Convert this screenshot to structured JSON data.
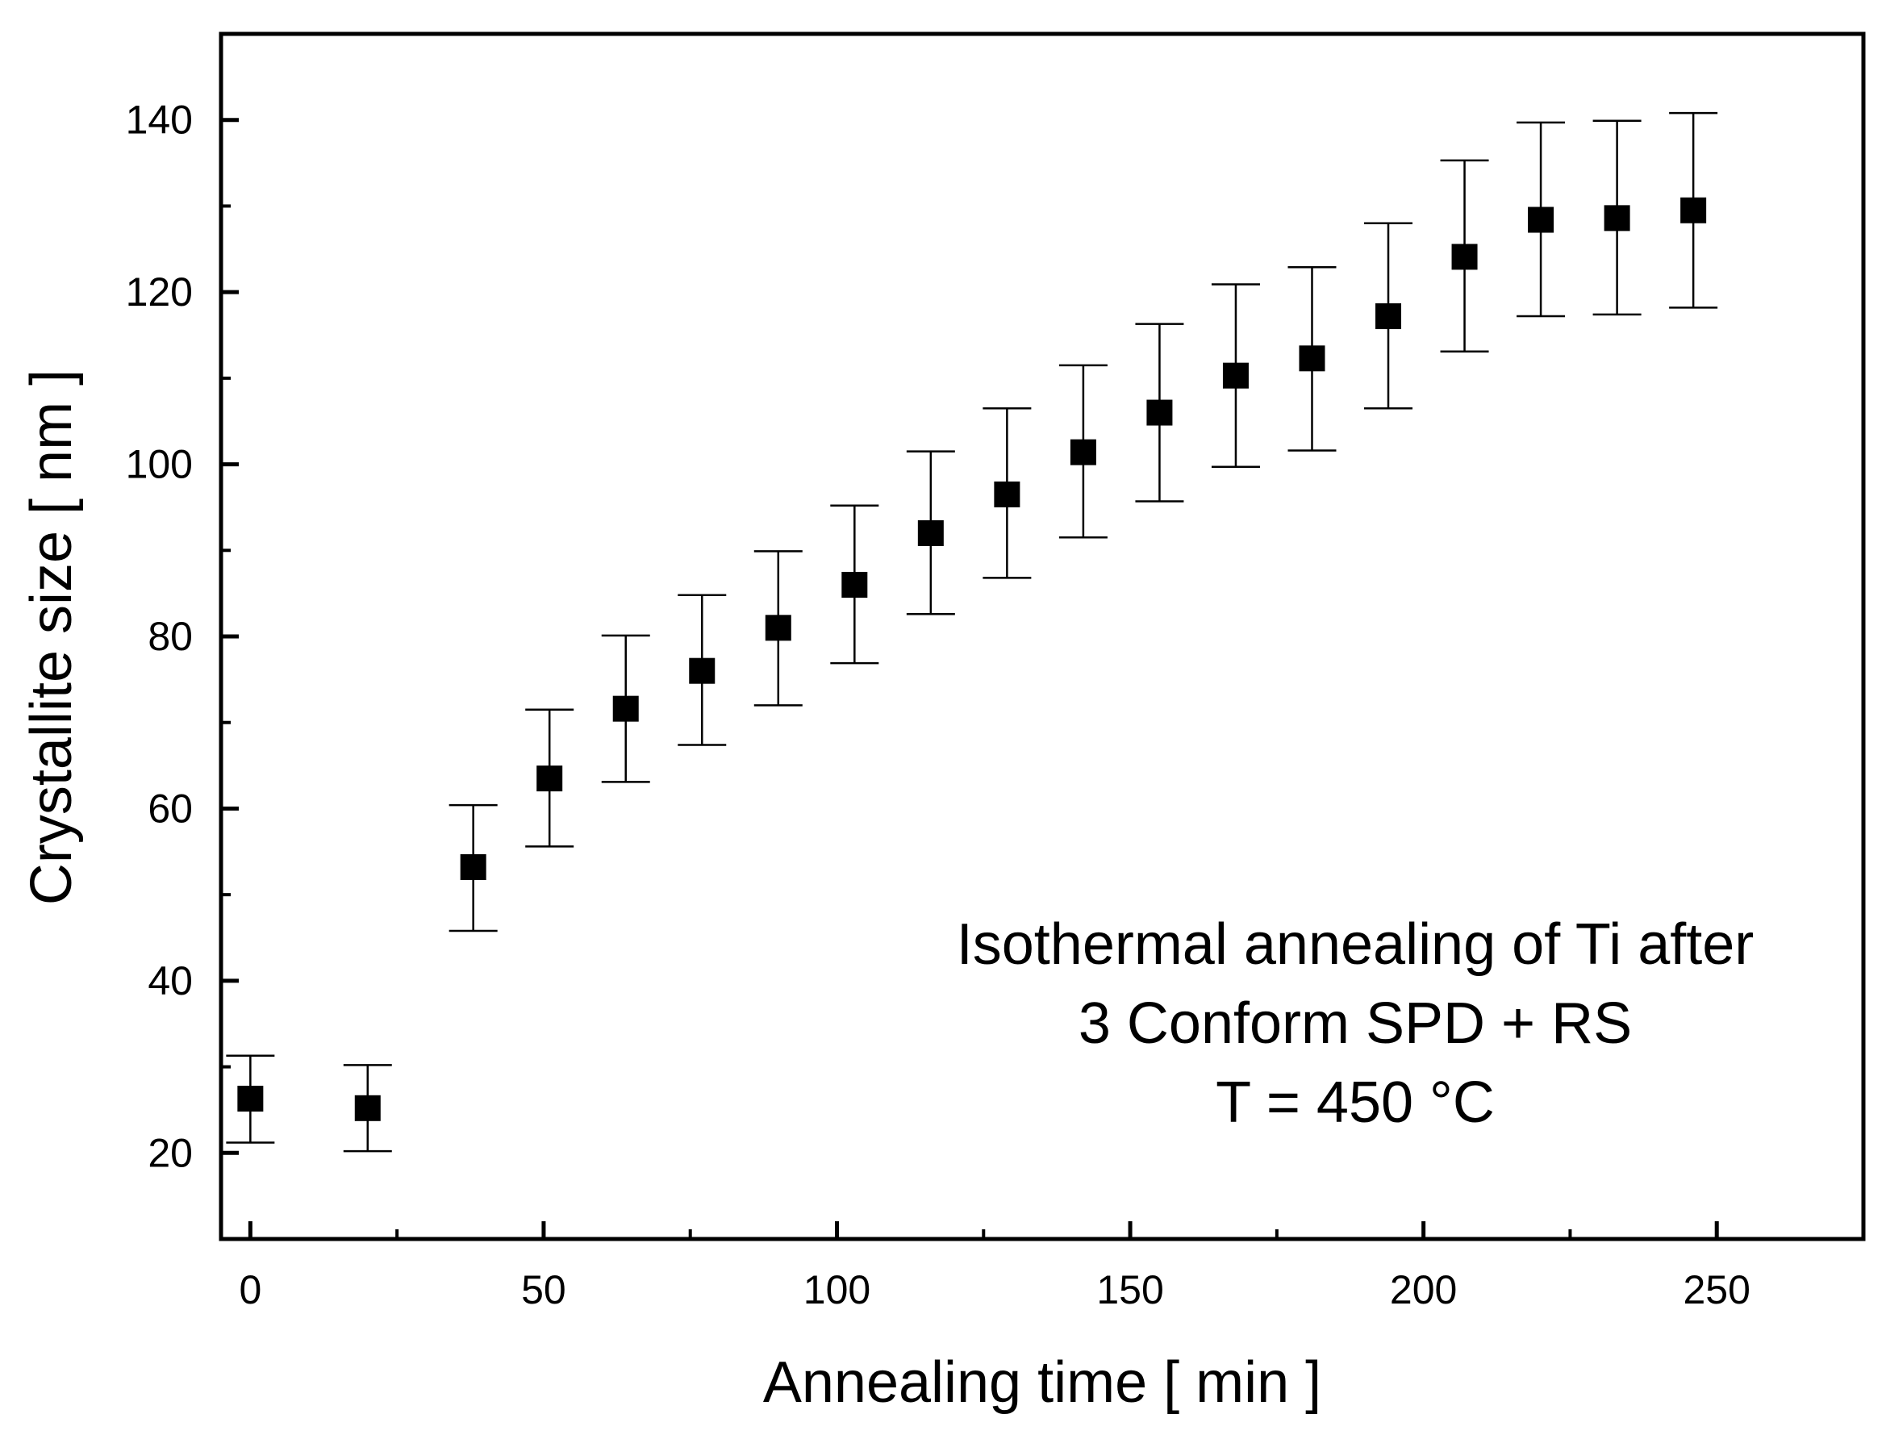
{
  "chart_data": {
    "type": "scatter",
    "title": "",
    "xlabel": "Annealing time [ min ]",
    "ylabel": "Crystallite size [ nm ]",
    "xlim": [
      -5,
      275
    ],
    "ylim": [
      10,
      150
    ],
    "x_ticks": [
      0,
      50,
      100,
      150,
      200,
      250
    ],
    "x_tick_labels": [
      "0",
      "50",
      "100",
      "150",
      "200",
      "250"
    ],
    "x_minor_ticks": [
      25,
      75,
      125,
      175,
      225
    ],
    "y_ticks": [
      20,
      40,
      60,
      80,
      100,
      120,
      140
    ],
    "y_tick_labels": [
      "20",
      "40",
      "60",
      "80",
      "100",
      "120",
      "140"
    ],
    "y_minor_ticks": [
      30,
      50,
      70,
      90,
      110,
      130
    ],
    "grid": false,
    "marker": "square",
    "color": "#000000",
    "series": [
      {
        "name": "Isothermal annealing of Ti after 3 Conform SPD + RS, T = 450 °C",
        "x": [
          0,
          20,
          38,
          51,
          64,
          77,
          90,
          103,
          116,
          129,
          142,
          155,
          168,
          181,
          194,
          207,
          220,
          233,
          246
        ],
        "y": [
          26.3,
          25.2,
          53.2,
          63.5,
          71.6,
          76.0,
          81.0,
          86.0,
          92.0,
          96.5,
          101.4,
          106.0,
          110.3,
          112.3,
          117.2,
          124.1,
          128.4,
          128.6,
          129.5
        ],
        "y_err_low": [
          21.2,
          20.2,
          45.8,
          55.6,
          63.1,
          67.4,
          72.0,
          76.9,
          82.6,
          86.8,
          91.5,
          95.7,
          99.7,
          101.6,
          106.5,
          113.1,
          117.2,
          117.4,
          118.2
        ],
        "y_err_high": [
          31.3,
          30.2,
          60.4,
          71.5,
          80.1,
          84.8,
          89.9,
          95.2,
          101.5,
          106.5,
          111.5,
          116.3,
          120.9,
          122.9,
          128.0,
          135.3,
          139.7,
          139.9,
          140.8
        ]
      }
    ],
    "annotations": [
      "Isothermal annealing of Ti after",
      "3 Conform SPD + RS",
      "T = 450 °C"
    ]
  }
}
